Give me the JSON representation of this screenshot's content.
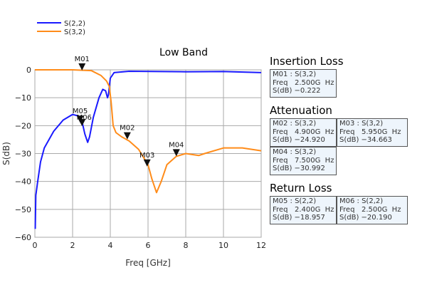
{
  "chart_data": {
    "type": "line",
    "title": "Low Band",
    "xlabel": "Freq [GHz]",
    "ylabel": "S(dB)",
    "xlim": [
      0,
      12
    ],
    "ylim": [
      -60,
      0
    ],
    "xticks": [
      "0",
      "2",
      "4",
      "6",
      "8",
      "10",
      "12"
    ],
    "yticks": [
      "0",
      "-10",
      "-20",
      "-30",
      "-40",
      "-50",
      "-60"
    ],
    "grid": true,
    "legend_placement": "top-left",
    "series": [
      {
        "name": "S(2,2)",
        "color": "#1a1aff",
        "x": [
          0.02,
          0.05,
          0.15,
          0.3,
          0.5,
          1,
          1.5,
          2,
          2.3,
          2.5,
          2.65,
          2.8,
          2.9,
          3.1,
          3.4,
          3.6,
          3.75,
          3.85,
          3.9,
          4.0,
          4.2,
          5,
          8,
          10,
          12
        ],
        "y": [
          -57,
          -45,
          -40,
          -33,
          -28,
          -22,
          -18,
          -16,
          -16.5,
          -18.5,
          -23,
          -26,
          -24,
          -17,
          -10,
          -7,
          -7.5,
          -10,
          -9,
          -3,
          -1,
          -0.5,
          -0.7,
          -0.6,
          -1
        ]
      },
      {
        "name": "S(3,2)",
        "color": "#ff8c1a",
        "x": [
          0,
          2,
          3,
          3.5,
          3.8,
          3.95,
          4.05,
          4.15,
          4.3,
          4.6,
          5,
          5.5,
          6,
          6.2,
          6.45,
          6.7,
          7,
          7.5,
          8,
          8.5,
          8.7,
          9,
          10,
          11,
          12
        ],
        "y": [
          0,
          0,
          -0.3,
          -2,
          -4,
          -6,
          -12,
          -20,
          -22.5,
          -24,
          -25.5,
          -28.5,
          -34,
          -39,
          -44,
          -40,
          -34,
          -31,
          -30,
          -30.5,
          -30.7,
          -30,
          -28,
          -28,
          -29
        ]
      }
    ],
    "markers": [
      {
        "label": "M01",
        "x": 2.5,
        "y": -0.222
      },
      {
        "label": "M02",
        "x": 4.9,
        "y": -24.92
      },
      {
        "label": "M03",
        "x": 5.95,
        "y": -34.663
      },
      {
        "label": "M04",
        "x": 7.5,
        "y": -30.992
      },
      {
        "label": "M05",
        "x": 2.4,
        "y": -18.957
      },
      {
        "label": "M06",
        "x": 2.5,
        "y": -20.19
      }
    ]
  },
  "panels": [
    {
      "title": "Insertion Loss",
      "boxes": [
        {
          "head": "M01 : S(3,2)",
          "freq": "Freq   2.500G  Hz",
          "sdb": "S(dB) −0.222"
        }
      ]
    },
    {
      "title": "Attenuation",
      "boxes": [
        {
          "head": "M02 : S(3,2)",
          "freq": "Freq   4.900G  Hz",
          "sdb": "S(dB) −24.920"
        },
        {
          "head": "M03 : S(3,2)",
          "freq": "Freq   5.950G  Hz",
          "sdb": "S(dB) −34.663"
        },
        {
          "head": "M04 : S(3,2)",
          "freq": "Freq   7.500G  Hz",
          "sdb": "S(dB) −30.992"
        }
      ]
    },
    {
      "title": "Return Loss",
      "boxes": [
        {
          "head": "M05 : S(2,2)",
          "freq": "Freq   2.400G  Hz",
          "sdb": "S(dB) −18.957"
        },
        {
          "head": "M06 : S(2,2)",
          "freq": "Freq   2.500G  Hz",
          "sdb": "S(dB) −20.190"
        }
      ]
    }
  ]
}
